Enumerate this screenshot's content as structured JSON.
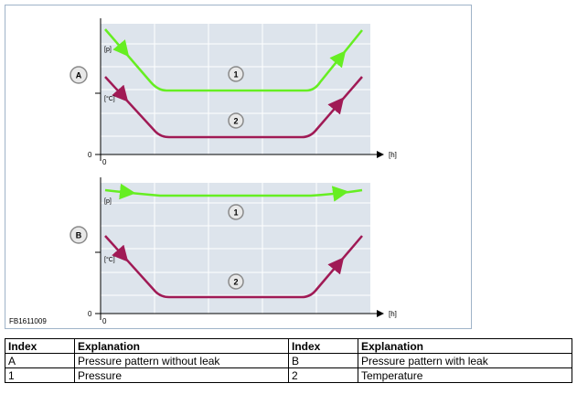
{
  "figure": {
    "code": "FB1611009",
    "panels": [
      {
        "badge": "A",
        "pressure_label": "[p]",
        "temperature_label": "[°C]",
        "origin_y": "0",
        "origin_x": "0",
        "time_label": "[h]",
        "curve1_badge": "1",
        "curve2_badge": "2"
      },
      {
        "badge": "B",
        "pressure_label": "[p]",
        "temperature_label": "[°C]",
        "origin_y": "0",
        "origin_x": "0",
        "time_label": "[h]",
        "curve1_badge": "1",
        "curve2_badge": "2"
      }
    ],
    "colors": {
      "pressure": "#66ee22",
      "temperature": "#a01a55",
      "plot_bg": "#dde4ec",
      "grid": "#ffffff",
      "badge_fill": "#e8e8e8"
    }
  },
  "legend": {
    "headers": [
      "Index",
      "Explanation",
      "Index",
      "Explanation"
    ],
    "rows": [
      [
        "A",
        "Pressure pattern without leak",
        "B",
        "Pressure pattern with leak"
      ],
      [
        "1",
        "Pressure",
        "2",
        "Temperature"
      ]
    ]
  }
}
